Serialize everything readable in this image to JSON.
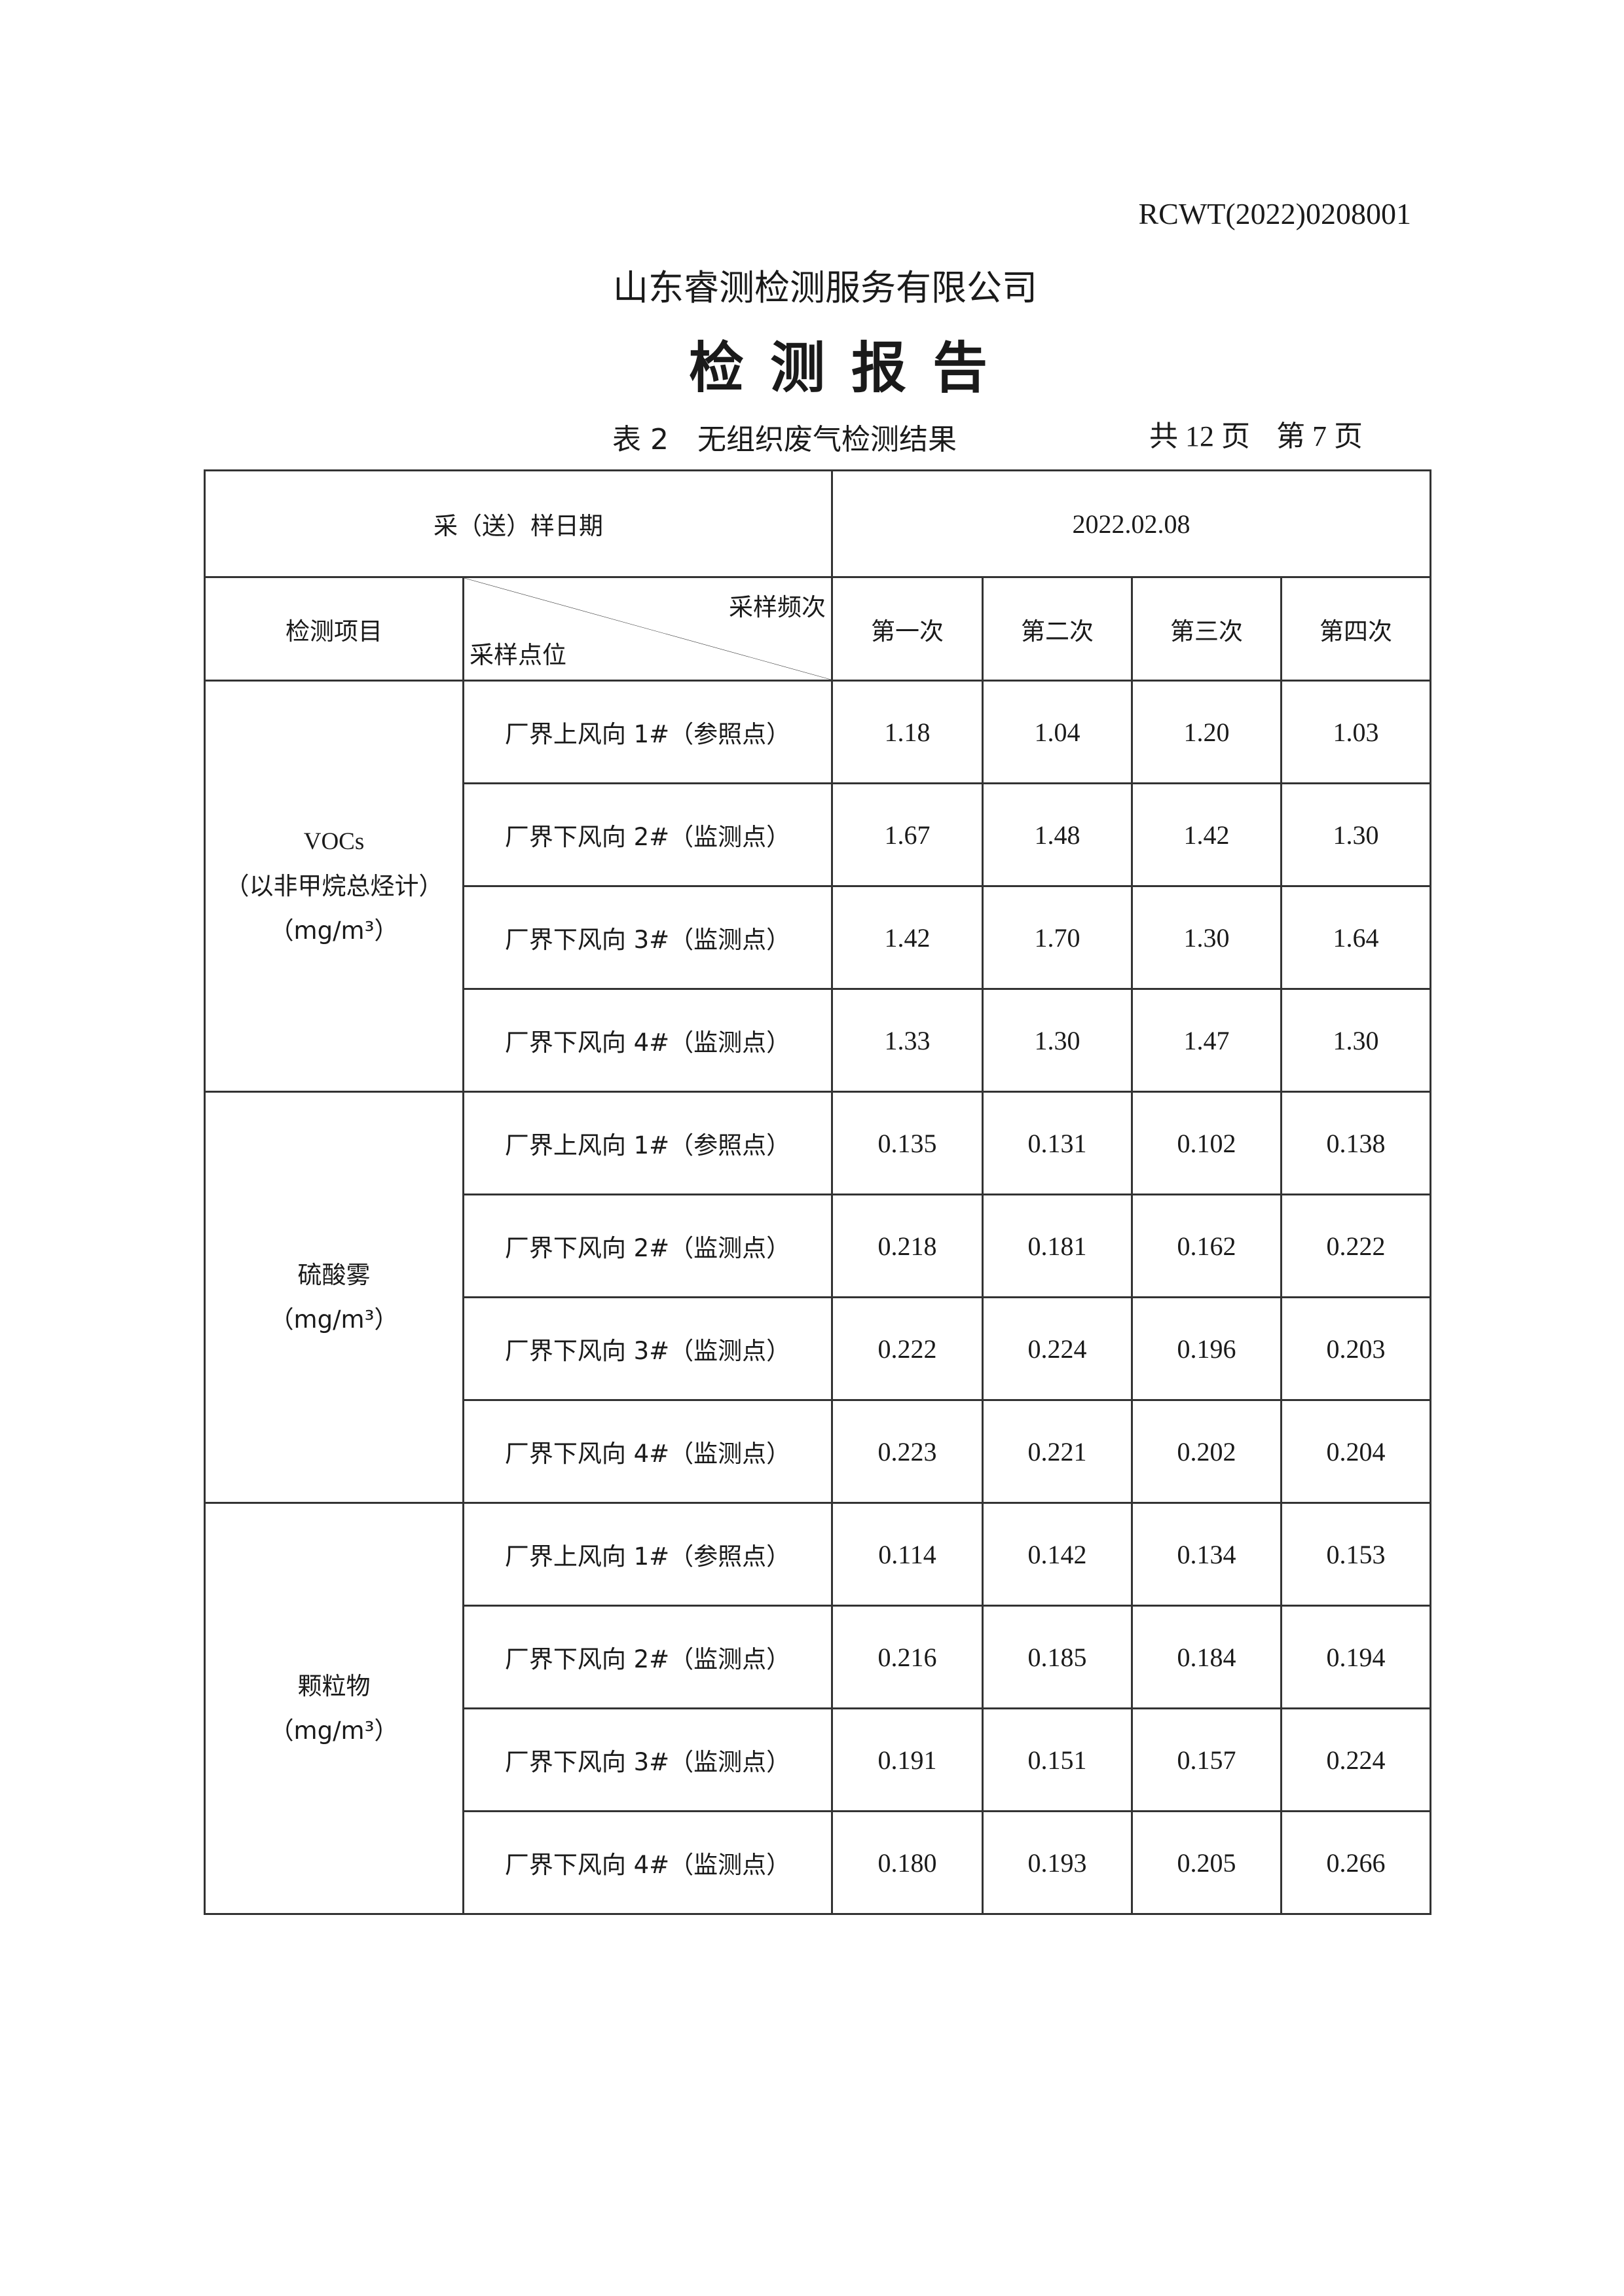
{
  "header": {
    "report_number": "RCWT(2022)0208001",
    "company": "山东睿测检测服务有限公司",
    "title": "检测报告",
    "table_caption": "表 2　无组织废气检测结果",
    "total_pages": "共 12 页",
    "current_page": "第 7 页"
  },
  "table": {
    "sampling_date_label": "采（送）样日期",
    "sampling_date": "2022.02.08",
    "item_label": "检测项目",
    "frequency_label": "采样频次",
    "point_label": "采样点位",
    "columns": [
      "第一次",
      "第二次",
      "第三次",
      "第四次"
    ],
    "groups": [
      {
        "name": "VOCs",
        "sub": "（以非甲烷总烃计）",
        "unit": "（mg/m³）",
        "rows": [
          {
            "point": "厂界上风向 1#（参照点）",
            "values": [
              "1.18",
              "1.04",
              "1.20",
              "1.03"
            ]
          },
          {
            "point": "厂界下风向 2#（监测点）",
            "values": [
              "1.67",
              "1.48",
              "1.42",
              "1.30"
            ]
          },
          {
            "point": "厂界下风向 3#（监测点）",
            "values": [
              "1.42",
              "1.70",
              "1.30",
              "1.64"
            ]
          },
          {
            "point": "厂界下风向 4#（监测点）",
            "values": [
              "1.33",
              "1.30",
              "1.47",
              "1.30"
            ]
          }
        ]
      },
      {
        "name": "硫酸雾",
        "unit": "（mg/m³）",
        "rows": [
          {
            "point": "厂界上风向 1#（参照点）",
            "values": [
              "0.135",
              "0.131",
              "0.102",
              "0.138"
            ]
          },
          {
            "point": "厂界下风向 2#（监测点）",
            "values": [
              "0.218",
              "0.181",
              "0.162",
              "0.222"
            ]
          },
          {
            "point": "厂界下风向 3#（监测点）",
            "values": [
              "0.222",
              "0.224",
              "0.196",
              "0.203"
            ]
          },
          {
            "point": "厂界下风向 4#（监测点）",
            "values": [
              "0.223",
              "0.221",
              "0.202",
              "0.204"
            ]
          }
        ]
      },
      {
        "name": "颗粒物",
        "unit": "（mg/m³）",
        "rows": [
          {
            "point": "厂界上风向 1#（参照点）",
            "values": [
              "0.114",
              "0.142",
              "0.134",
              "0.153"
            ]
          },
          {
            "point": "厂界下风向 2#（监测点）",
            "values": [
              "0.216",
              "0.185",
              "0.184",
              "0.194"
            ]
          },
          {
            "point": "厂界下风向 3#（监测点）",
            "values": [
              "0.191",
              "0.151",
              "0.157",
              "0.224"
            ]
          },
          {
            "point": "厂界下风向 4#（监测点）",
            "values": [
              "0.180",
              "0.193",
              "0.205",
              "0.266"
            ]
          }
        ]
      }
    ]
  }
}
